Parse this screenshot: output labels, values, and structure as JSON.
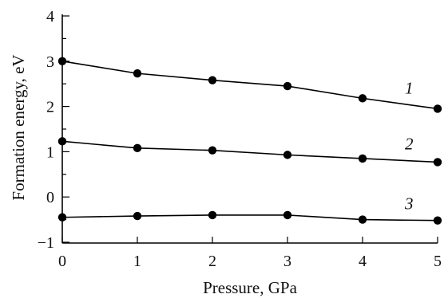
{
  "chart_data": {
    "type": "line",
    "xlabel": "Pressure, GPa",
    "ylabel": "Formation energy, eV",
    "xlim": [
      0,
      5
    ],
    "ylim": [
      -1,
      4
    ],
    "x_ticks": [
      "0",
      "1",
      "2",
      "3",
      "4",
      "5"
    ],
    "y_ticks": [
      "−1",
      "0",
      "1",
      "2",
      "3",
      "4"
    ],
    "grid": false,
    "x": [
      0,
      1,
      2,
      3,
      4,
      5
    ],
    "series": [
      {
        "name": "1",
        "values": [
          3.0,
          2.73,
          2.58,
          2.45,
          2.18,
          1.95
        ]
      },
      {
        "name": "2",
        "values": [
          1.23,
          1.08,
          1.03,
          0.93,
          0.85,
          0.77
        ]
      },
      {
        "name": "3",
        "values": [
          -0.45,
          -0.42,
          -0.4,
          -0.4,
          -0.5,
          -0.52
        ]
      }
    ],
    "line_color": "#000000",
    "marker": "filled-circle"
  }
}
